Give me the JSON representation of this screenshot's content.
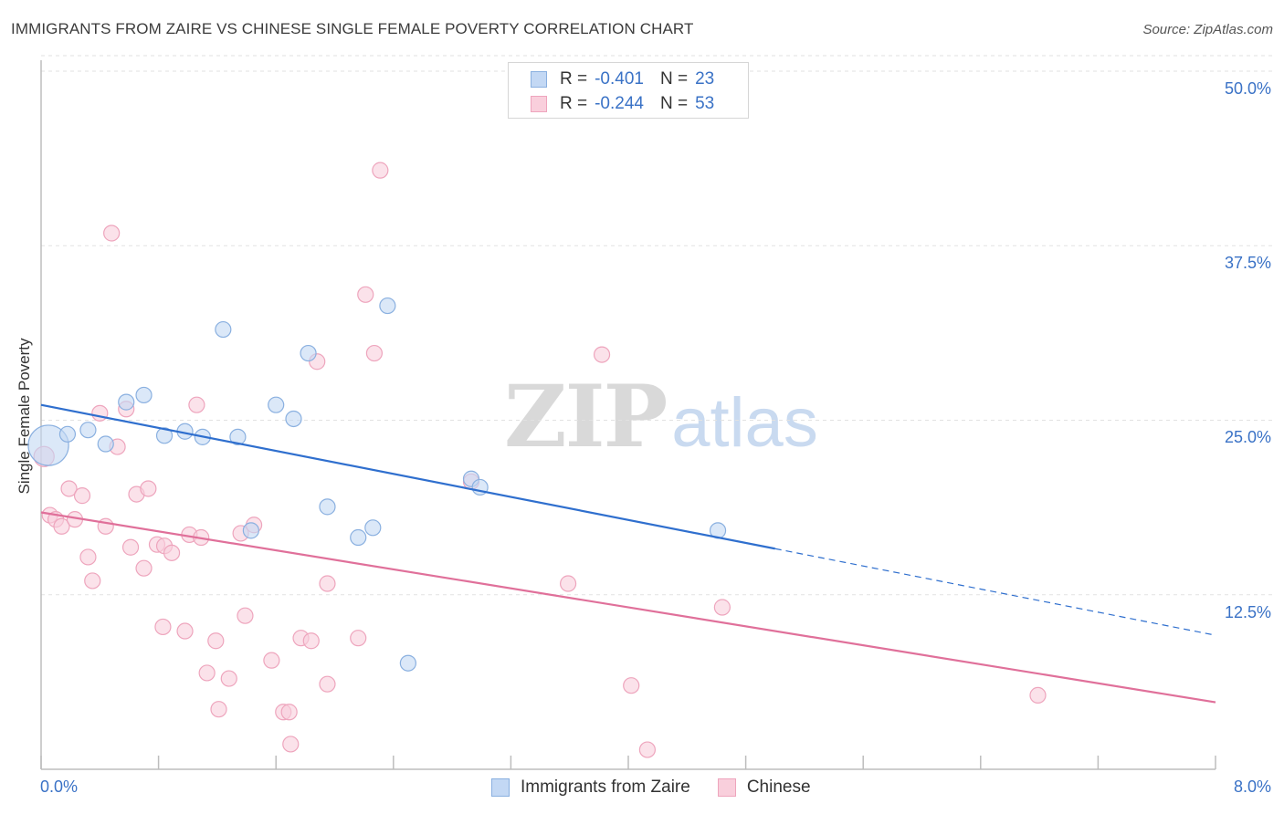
{
  "title": "IMMIGRANTS FROM ZAIRE VS CHINESE SINGLE FEMALE POVERTY CORRELATION CHART",
  "source": "Source: ZipAtlas.com",
  "watermark": {
    "zip": "ZIP",
    "atlas": "atlas"
  },
  "legend_top": {
    "rows": [
      {
        "r_label": "R =",
        "r_value": "-0.401",
        "n_label": "N =",
        "n_value": "23"
      },
      {
        "r_label": "R =",
        "r_value": "-0.244",
        "n_label": "N =",
        "n_value": "53"
      }
    ]
  },
  "legend_bottom": {
    "items": [
      "Immigrants from Zaire",
      "Chinese"
    ]
  },
  "colors": {
    "zaire_fill": "#c3d8f4",
    "zaire_stroke": "#8ab0e0",
    "zaire_line": "#2f6fce",
    "chinese_fill": "#f9cfdc",
    "chinese_stroke": "#eea5bd",
    "chinese_line": "#e0709a",
    "grid": "#e2e2e2",
    "axis_text": "#3a72c6"
  },
  "chart_data": {
    "type": "scatter",
    "title": "IMMIGRANTS FROM ZAIRE VS CHINESE SINGLE FEMALE POVERTY CORRELATION CHART",
    "xlabel": "",
    "ylabel": "Single Female Poverty",
    "xlim": [
      0,
      8
    ],
    "ylim": [
      0,
      50
    ],
    "x_tick_labels": [
      "0.0%",
      "8.0%"
    ],
    "y_ticks": [
      12.5,
      25.0,
      37.5,
      50.0
    ],
    "y_tick_labels": [
      "12.5%",
      "25.0%",
      "37.5%",
      "50.0%"
    ],
    "grid": true,
    "legend_position": "top-center",
    "series": [
      {
        "name": "Immigrants from Zaire",
        "r": -0.401,
        "n": 23,
        "points": [
          [
            0.05,
            23.2,
            2.6
          ],
          [
            0.18,
            24.0,
            1
          ],
          [
            0.32,
            24.3,
            1
          ],
          [
            0.44,
            23.3,
            1
          ],
          [
            0.58,
            26.3,
            1
          ],
          [
            0.7,
            26.8,
            1
          ],
          [
            0.84,
            23.9,
            1
          ],
          [
            0.98,
            24.2,
            1
          ],
          [
            1.1,
            23.8,
            1
          ],
          [
            1.24,
            31.5,
            1
          ],
          [
            1.34,
            23.8,
            1
          ],
          [
            1.43,
            17.1,
            1
          ],
          [
            1.6,
            26.1,
            1
          ],
          [
            1.72,
            25.1,
            1
          ],
          [
            1.82,
            29.8,
            1
          ],
          [
            1.95,
            18.8,
            1
          ],
          [
            2.16,
            16.6,
            1
          ],
          [
            2.26,
            17.3,
            1
          ],
          [
            2.36,
            33.2,
            1
          ],
          [
            2.5,
            7.6,
            1
          ],
          [
            2.93,
            20.8,
            1
          ],
          [
            2.99,
            20.2,
            1
          ],
          [
            4.61,
            17.1,
            1
          ]
        ],
        "trend": {
          "x0": 0.0,
          "y0": 26.1,
          "x1": 5.0,
          "y1": 15.8,
          "dashed_to_x": 8.0,
          "dashed_to_y": 9.6
        }
      },
      {
        "name": "Chinese",
        "r": -0.244,
        "n": 53,
        "points": [
          [
            0.02,
            22.4,
            1.3
          ],
          [
            0.06,
            18.2,
            1
          ],
          [
            0.1,
            17.9,
            1
          ],
          [
            0.14,
            17.4,
            1
          ],
          [
            0.19,
            20.1,
            1
          ],
          [
            0.23,
            17.9,
            1
          ],
          [
            0.28,
            19.6,
            1
          ],
          [
            0.32,
            15.2,
            1
          ],
          [
            0.35,
            13.5,
            1
          ],
          [
            0.4,
            25.5,
            1
          ],
          [
            0.44,
            17.4,
            1
          ],
          [
            0.48,
            38.4,
            1
          ],
          [
            0.52,
            23.1,
            1
          ],
          [
            0.58,
            25.8,
            1
          ],
          [
            0.61,
            15.9,
            1
          ],
          [
            0.65,
            19.7,
            1
          ],
          [
            0.7,
            14.4,
            1
          ],
          [
            0.73,
            20.1,
            1
          ],
          [
            0.79,
            16.1,
            1
          ],
          [
            0.83,
            10.2,
            1
          ],
          [
            0.84,
            16.0,
            1
          ],
          [
            0.89,
            15.5,
            1
          ],
          [
            0.98,
            9.9,
            1
          ],
          [
            1.01,
            16.8,
            1
          ],
          [
            1.06,
            26.1,
            1
          ],
          [
            1.09,
            16.6,
            1
          ],
          [
            1.13,
            6.9,
            1
          ],
          [
            1.19,
            9.2,
            1
          ],
          [
            1.21,
            4.3,
            1
          ],
          [
            1.28,
            6.5,
            1
          ],
          [
            1.36,
            16.9,
            1
          ],
          [
            1.39,
            11.0,
            1
          ],
          [
            1.45,
            17.5,
            1
          ],
          [
            1.57,
            7.8,
            1
          ],
          [
            1.65,
            4.1,
            1
          ],
          [
            1.69,
            4.1,
            1
          ],
          [
            1.7,
            1.8,
            1
          ],
          [
            1.77,
            9.4,
            1
          ],
          [
            1.84,
            9.2,
            1
          ],
          [
            1.88,
            29.2,
            1
          ],
          [
            1.95,
            6.1,
            1
          ],
          [
            1.95,
            13.3,
            1
          ],
          [
            2.16,
            9.4,
            1
          ],
          [
            2.21,
            34.0,
            1
          ],
          [
            2.27,
            29.8,
            1
          ],
          [
            2.31,
            42.9,
            1
          ],
          [
            2.93,
            20.6,
            1
          ],
          [
            3.59,
            13.3,
            1
          ],
          [
            3.82,
            29.7,
            1
          ],
          [
            4.02,
            6.0,
            1
          ],
          [
            4.13,
            1.4,
            1
          ],
          [
            4.64,
            11.6,
            1
          ],
          [
            6.79,
            5.3,
            1
          ]
        ],
        "trend": {
          "x0": 0.0,
          "y0": 18.4,
          "x1": 8.0,
          "y1": 4.8
        }
      }
    ]
  }
}
